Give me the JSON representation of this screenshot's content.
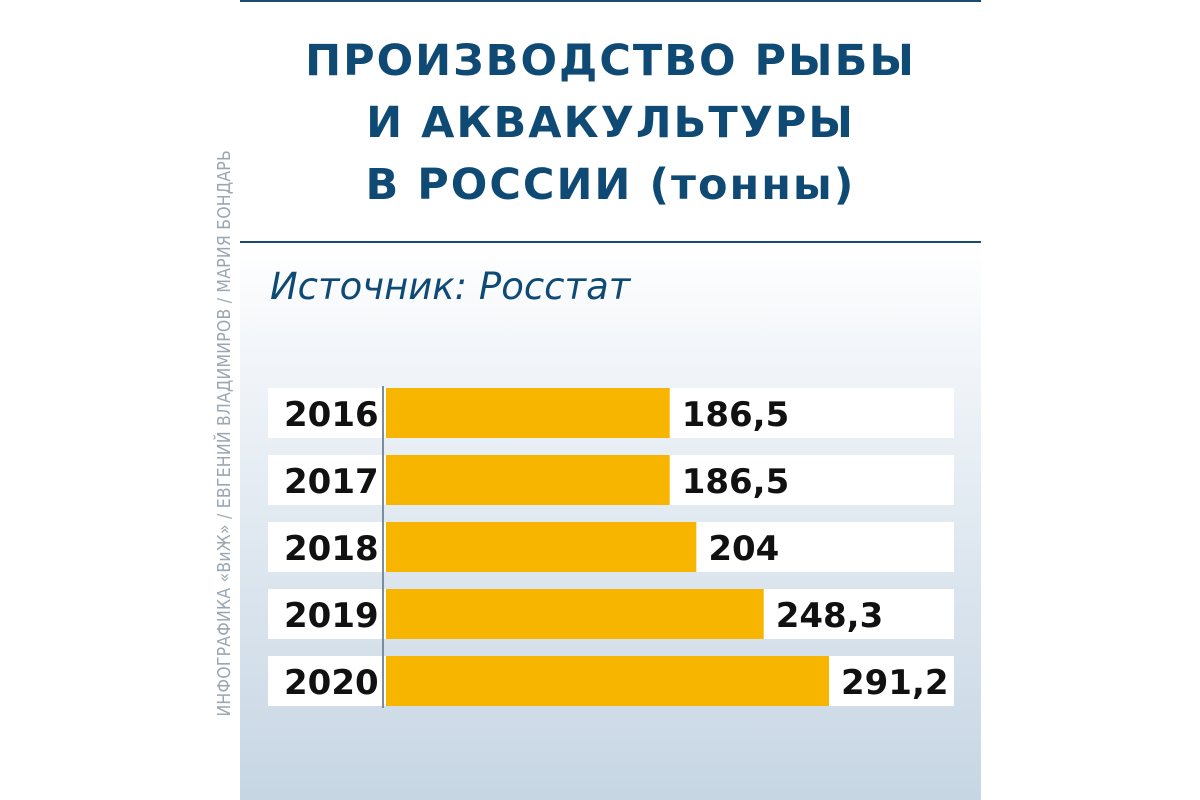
{
  "title_lines": [
    "ПРОИЗВОДСТВО РЫБЫ",
    "И АКВАКУЛЬТУРЫ",
    "В РОССИИ (тонны)"
  ],
  "source": "Источник: Росстат",
  "credit": "ИНФОГРАФИКА «ВиЖ» / ЕВГЕНИЙ ВЛАДИМИРОВ / МАРИЯ БОНДАРЬ",
  "colors": {
    "title": "#0f4a75",
    "bar": "#f7b500",
    "row_background": "#ffffff",
    "panel_gradient_top": "#ffffff",
    "panel_gradient_bottom": "#c7d6e4"
  },
  "chart_data": {
    "type": "bar",
    "orientation": "horizontal",
    "title": "ПРОИЗВОДСТВО РЫБЫ И АКВАКУЛЬТУРЫ В РОССИИ (тонны)",
    "categories": [
      "2016",
      "2017",
      "2018",
      "2019",
      "2020"
    ],
    "values": [
      186.5,
      186.5,
      204,
      248.3,
      291.2
    ],
    "value_labels": [
      "186,5",
      "186,5",
      "204",
      "248,3",
      "291,2"
    ],
    "xlabel": "",
    "ylabel": "",
    "grid": false,
    "legend": "none"
  }
}
